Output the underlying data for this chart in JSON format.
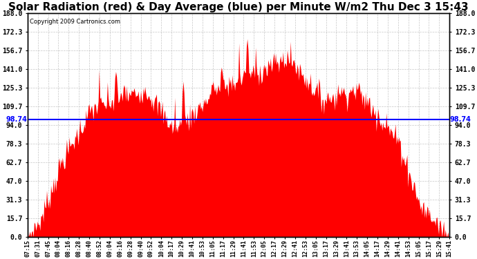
{
  "title": "Solar Radiation (red) & Day Average (blue) per Minute W/m2 Thu Dec 3 15:43",
  "copyright": "Copyright 2009 Cartronics.com",
  "y_ticks": [
    0.0,
    15.7,
    31.3,
    47.0,
    62.7,
    78.3,
    94.0,
    109.7,
    125.3,
    141.0,
    156.7,
    172.3,
    188.0
  ],
  "ymin": 0.0,
  "ymax": 188.0,
  "avg_value": 98.74,
  "avg_label": "98.74",
  "bar_color": "#FF0000",
  "avg_color": "#0000FF",
  "background_color": "#FFFFFF",
  "plot_bg_color": "#FFFFFF",
  "grid_color": "#C0C0C0",
  "title_fontsize": 11,
  "figwidth": 6.9,
  "figheight": 3.75,
  "x_labels": [
    "07:15",
    "07:31",
    "07:45",
    "08:04",
    "08:16",
    "08:28",
    "08:40",
    "08:52",
    "09:04",
    "09:16",
    "09:28",
    "09:40",
    "09:52",
    "10:04",
    "10:17",
    "10:29",
    "10:41",
    "10:53",
    "11:05",
    "11:17",
    "11:29",
    "11:41",
    "11:53",
    "12:05",
    "12:17",
    "12:29",
    "12:41",
    "12:53",
    "13:05",
    "13:17",
    "13:29",
    "13:41",
    "13:53",
    "14:05",
    "14:17",
    "14:29",
    "14:41",
    "14:53",
    "15:05",
    "15:17",
    "15:29",
    "15:41"
  ]
}
